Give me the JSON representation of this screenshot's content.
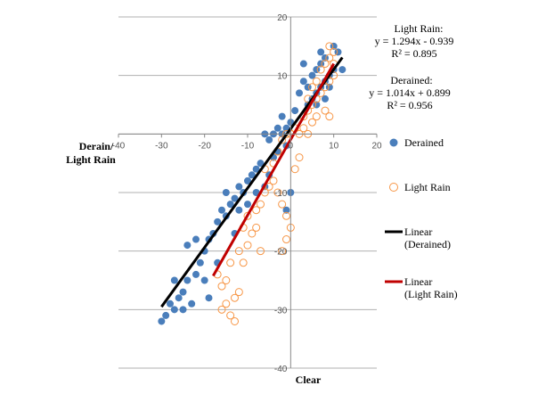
{
  "chart_data": {
    "type": "scatter",
    "xlabel": "Clear",
    "ylabel": "Derain/ Light Rain",
    "xlim": [
      -40,
      20
    ],
    "ylim": [
      -40,
      20
    ],
    "xticks": [
      "-40",
      "-30",
      "-20",
      "-10",
      "0",
      "10",
      "20"
    ],
    "yticks": [
      "20",
      "10",
      "0",
      "-10",
      "-20",
      "-30",
      "-40"
    ],
    "grid": "horizontal",
    "legend_position": "right",
    "series": [
      {
        "name": "Derained",
        "marker": "filled-circle",
        "color": "#4a7ebb",
        "points": [
          [
            -30,
            -32
          ],
          [
            -29,
            -31
          ],
          [
            -28,
            -29
          ],
          [
            -27,
            -30
          ],
          [
            -26,
            -28
          ],
          [
            -25,
            -27
          ],
          [
            -27,
            -25
          ],
          [
            -25,
            -30
          ],
          [
            -23,
            -29
          ],
          [
            -24,
            -25
          ],
          [
            -22,
            -24
          ],
          [
            -21,
            -22
          ],
          [
            -22,
            -18
          ],
          [
            -20,
            -20
          ],
          [
            -19,
            -18
          ],
          [
            -18,
            -17
          ],
          [
            -20,
            -25
          ],
          [
            -17,
            -15
          ],
          [
            -16,
            -13
          ],
          [
            -15,
            -14
          ],
          [
            -14,
            -12
          ],
          [
            -13,
            -11
          ],
          [
            -15,
            -10
          ],
          [
            -12,
            -9
          ],
          [
            -11,
            -10
          ],
          [
            -10,
            -8
          ],
          [
            -9,
            -7
          ],
          [
            -12,
            -13
          ],
          [
            -10,
            -12
          ],
          [
            -8,
            -6
          ],
          [
            -7,
            -5
          ],
          [
            -6,
            -9
          ],
          [
            -5,
            -7
          ],
          [
            -8,
            -10
          ],
          [
            -4,
            -4
          ],
          [
            -6,
            0
          ],
          [
            -5,
            -1
          ],
          [
            -4,
            0
          ],
          [
            -3,
            1
          ],
          [
            -2,
            0
          ],
          [
            -1,
            1
          ],
          [
            -2,
            3
          ],
          [
            0,
            2
          ],
          [
            1,
            4
          ],
          [
            -3,
            -3
          ],
          [
            -1,
            -2
          ],
          [
            0,
            -10
          ],
          [
            -1,
            -13
          ],
          [
            2,
            7
          ],
          [
            3,
            9
          ],
          [
            4,
            8
          ],
          [
            5,
            10
          ],
          [
            6,
            11
          ],
          [
            7,
            12
          ],
          [
            8,
            13
          ],
          [
            5,
            6
          ],
          [
            6,
            7
          ],
          [
            7,
            8
          ],
          [
            8,
            9
          ],
          [
            9,
            10
          ],
          [
            10,
            11
          ],
          [
            4,
            5
          ],
          [
            6,
            5
          ],
          [
            8,
            6
          ],
          [
            9,
            8
          ],
          [
            10,
            15
          ],
          [
            11,
            14
          ],
          [
            12,
            11
          ],
          [
            7,
            14
          ],
          [
            3,
            12
          ],
          [
            -17,
            -22
          ],
          [
            -24,
            -19
          ],
          [
            -19,
            -28
          ],
          [
            -13,
            -17
          ]
        ]
      },
      {
        "name": "Light Rain",
        "marker": "open-circle",
        "color": "#f79646",
        "points": [
          [
            -17,
            -24
          ],
          [
            -16,
            -26
          ],
          [
            -15,
            -29
          ],
          [
            -14,
            -31
          ],
          [
            -13,
            -32
          ],
          [
            -15,
            -25
          ],
          [
            -16,
            -30
          ],
          [
            -13,
            -28
          ],
          [
            -12,
            -27
          ],
          [
            -14,
            -22
          ],
          [
            -12,
            -20
          ],
          [
            -11,
            -22
          ],
          [
            -10,
            -19
          ],
          [
            -9,
            -17
          ],
          [
            -8,
            -16
          ],
          [
            -10,
            -14
          ],
          [
            -8,
            -13
          ],
          [
            -7,
            -12
          ],
          [
            -6,
            -10
          ],
          [
            -5,
            -9
          ],
          [
            -4,
            -8
          ],
          [
            -3,
            -10
          ],
          [
            -2,
            -12
          ],
          [
            -1,
            -14
          ],
          [
            0,
            -16
          ],
          [
            -6,
            -6
          ],
          [
            -4,
            -5
          ],
          [
            -3,
            -3
          ],
          [
            -2,
            -1
          ],
          [
            -1,
            0
          ],
          [
            0,
            0
          ],
          [
            1,
            1
          ],
          [
            2,
            0
          ],
          [
            3,
            1
          ],
          [
            4,
            0
          ],
          [
            5,
            2
          ],
          [
            3,
            3
          ],
          [
            4,
            4
          ],
          [
            5,
            5
          ],
          [
            6,
            6
          ],
          [
            7,
            7
          ],
          [
            8,
            8
          ],
          [
            9,
            9
          ],
          [
            10,
            10
          ],
          [
            6,
            9
          ],
          [
            7,
            11
          ],
          [
            8,
            12
          ],
          [
            9,
            13
          ],
          [
            10,
            12
          ],
          [
            5,
            8
          ],
          [
            4,
            6
          ],
          [
            9,
            15
          ],
          [
            10,
            14
          ],
          [
            8,
            4
          ],
          [
            9,
            3
          ],
          [
            6,
            3
          ],
          [
            2,
            -4
          ],
          [
            1,
            -6
          ],
          [
            -1,
            -18
          ],
          [
            -2,
            -20
          ],
          [
            -11,
            -16
          ],
          [
            -7,
            -20
          ]
        ]
      }
    ],
    "trendlines": [
      {
        "name": "Linear (Derained)",
        "color": "#000000",
        "slope": 1.014,
        "intercept": 0.899,
        "x_range": [
          -30,
          12
        ]
      },
      {
        "name": "Linear (Light Rain)",
        "color": "#c00000",
        "slope": 1.294,
        "intercept": -0.939,
        "x_range": [
          -18,
          10
        ]
      }
    ],
    "annotations": {
      "light_rain": [
        "Light  Rain:",
        "y = 1.294x - 0.939",
        "R² = 0.895"
      ],
      "derained": [
        "Derained:",
        "y = 1.014x + 0.899",
        "R² = 0.956"
      ]
    },
    "legend": [
      {
        "label": "Derained"
      },
      {
        "label": "Light Rain"
      },
      {
        "label": "Linear",
        "label2": "(Derained)"
      },
      {
        "label": "Linear",
        "label2": "(Light Rain)"
      }
    ]
  }
}
